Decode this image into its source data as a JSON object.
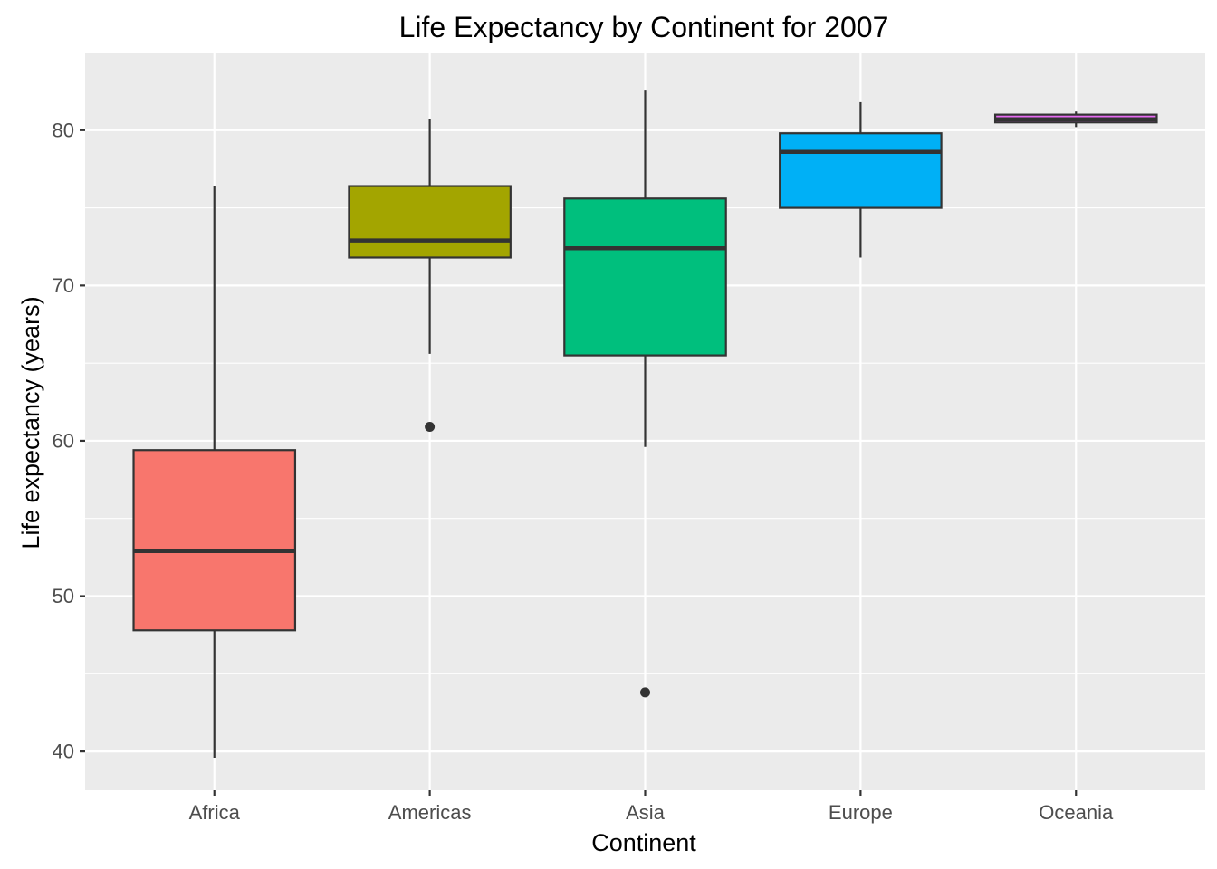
{
  "chart_data": {
    "type": "boxplot",
    "title": "Life Expectancy by Continent for 2007",
    "xlabel": "Continent",
    "ylabel": "Life expectancy (years)",
    "ylim": [
      37.5,
      85
    ],
    "yticks": [
      40,
      50,
      60,
      70,
      80
    ],
    "yticks_labels": [
      "40",
      "50",
      "60",
      "70",
      "80"
    ],
    "grid": true,
    "legend": "none",
    "categories": [
      "Africa",
      "Americas",
      "Asia",
      "Europe",
      "Oceania"
    ],
    "boxes": [
      {
        "category": "Africa",
        "color": "#F8766D",
        "whisker_low": 39.6,
        "q1": 47.8,
        "median": 52.9,
        "q3": 59.4,
        "whisker_high": 76.4,
        "outliers": []
      },
      {
        "category": "Americas",
        "color": "#A3A500",
        "whisker_low": 65.6,
        "q1": 71.8,
        "median": 72.9,
        "q3": 76.4,
        "whisker_high": 80.7,
        "outliers": [
          60.9
        ]
      },
      {
        "category": "Asia",
        "color": "#00BF7D",
        "whisker_low": 59.6,
        "q1": 65.5,
        "median": 72.4,
        "q3": 75.6,
        "whisker_high": 82.6,
        "outliers": [
          43.8
        ]
      },
      {
        "category": "Europe",
        "color": "#00B0F6",
        "whisker_low": 71.8,
        "q1": 75.0,
        "median": 78.6,
        "q3": 79.8,
        "whisker_high": 81.8,
        "outliers": []
      },
      {
        "category": "Oceania",
        "color": "#E76BF3",
        "whisker_low": 80.2,
        "q1": 80.5,
        "median": 80.7,
        "q3": 81.0,
        "whisker_high": 81.2,
        "outliers": []
      }
    ]
  }
}
